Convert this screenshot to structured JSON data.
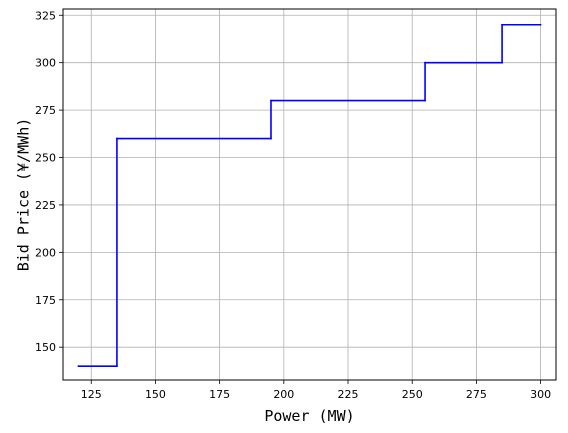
{
  "chart_data": {
    "type": "line",
    "step": "post",
    "xlabel": "Power (MW)",
    "ylabel": "Bid Price (¥/MWh)",
    "xlim": [
      114,
      306
    ],
    "ylim": [
      132.7,
      328.3
    ],
    "xticks": [
      125,
      150,
      175,
      200,
      225,
      250,
      275,
      300
    ],
    "yticks": [
      150,
      175,
      200,
      225,
      250,
      275,
      300,
      325
    ],
    "grid": true,
    "series": [
      {
        "color": "#0000ff",
        "points": [
          [
            120,
            140
          ],
          [
            135,
            140
          ],
          [
            135,
            260
          ],
          [
            195,
            260
          ],
          [
            195,
            280
          ],
          [
            255,
            280
          ],
          [
            255,
            300
          ],
          [
            285,
            300
          ],
          [
            285,
            320
          ],
          [
            300,
            320
          ]
        ]
      }
    ]
  }
}
